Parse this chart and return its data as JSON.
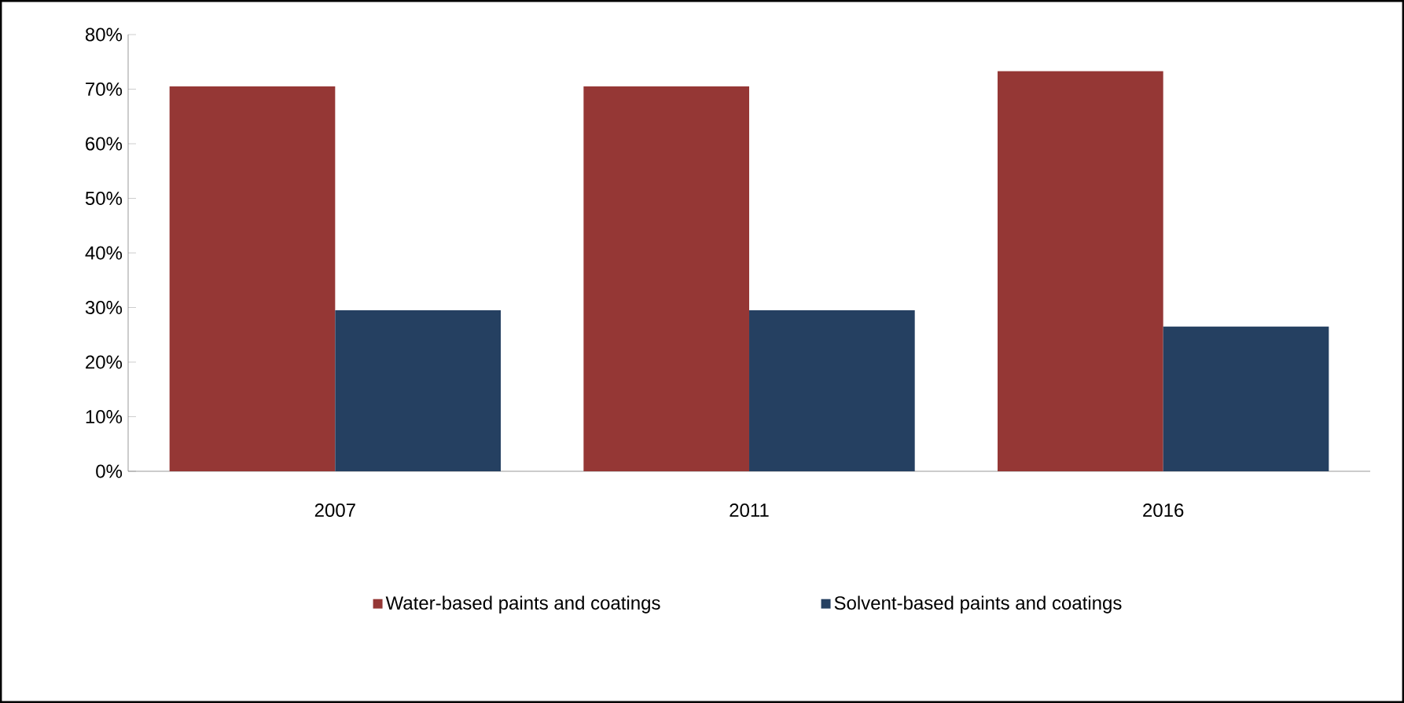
{
  "chart_data": {
    "type": "bar",
    "categories": [
      "2007",
      "2011",
      "2016"
    ],
    "series": [
      {
        "name": "Water-based paints and coatings",
        "color": "#953735",
        "values": [
          70.5,
          70.5,
          73.3
        ]
      },
      {
        "name": "Solvent-based paints and coatings",
        "color": "#254061",
        "values": [
          29.5,
          29.5,
          26.5
        ]
      }
    ],
    "ylim": [
      0,
      80
    ],
    "yticks": [
      {
        "value": 0,
        "label": "0%"
      },
      {
        "value": 10,
        "label": "10%"
      },
      {
        "value": 20,
        "label": "20%"
      },
      {
        "value": 30,
        "label": "30%"
      },
      {
        "value": 40,
        "label": "40%"
      },
      {
        "value": 50,
        "label": "50%"
      },
      {
        "value": 60,
        "label": "60%"
      },
      {
        "value": 70,
        "label": "70%"
      },
      {
        "value": 80,
        "label": "80%"
      }
    ],
    "legend": "bottom",
    "grid": false
  }
}
